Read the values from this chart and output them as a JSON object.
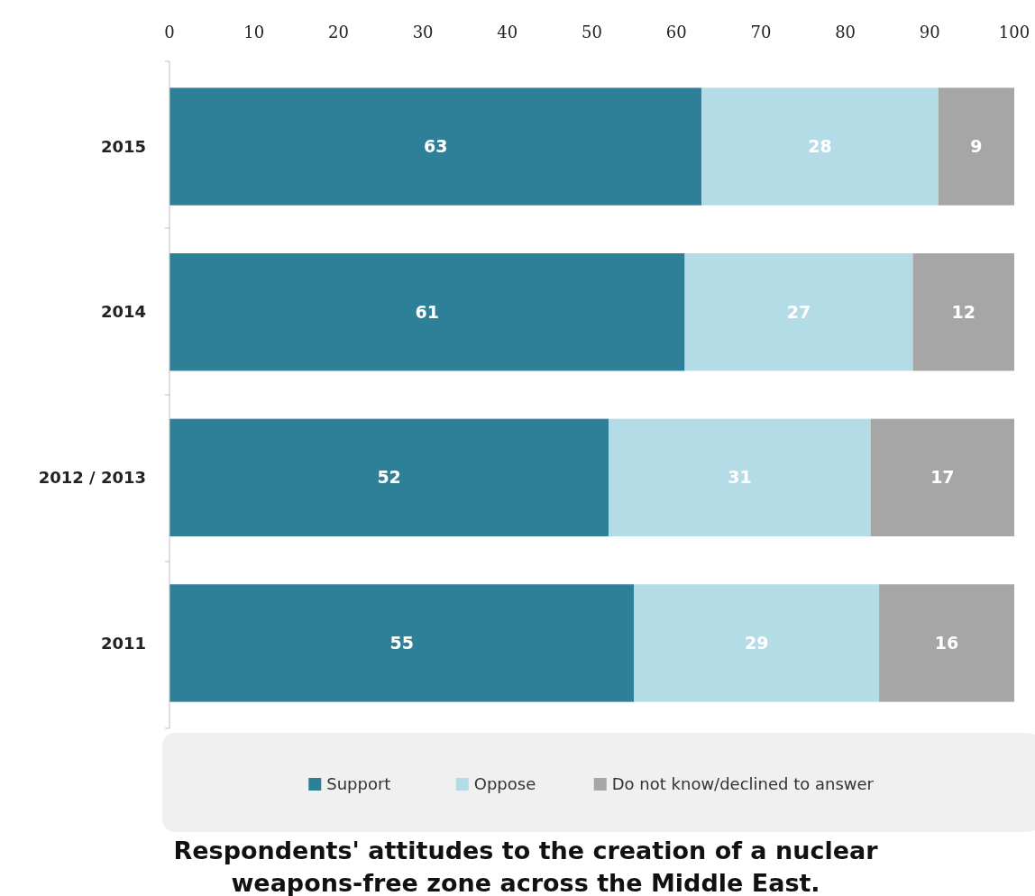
{
  "chart_data": {
    "type": "bar",
    "orientation": "horizontal",
    "stacked": true,
    "title": "Respondents' attitudes to the creation of a nuclear weapons-free zone across the Middle East.",
    "categories": [
      "2015",
      "2014",
      "2012 / 2013",
      "2011"
    ],
    "series": [
      {
        "name": "Support",
        "color": "#2e8099",
        "values": [
          63,
          61,
          52,
          55
        ]
      },
      {
        "name": "Oppose",
        "color": "#b3dce6",
        "values": [
          28,
          27,
          31,
          29
        ]
      },
      {
        "name": "Do not know/declined to answer",
        "color": "#a6a6a6",
        "values": [
          9,
          12,
          17,
          16
        ]
      }
    ],
    "xlim": [
      0,
      100
    ],
    "xticks": [
      0,
      10,
      20,
      30,
      40,
      50,
      60,
      70,
      80,
      90,
      100
    ],
    "data_labels": true,
    "legend": "bottom",
    "grid": false
  }
}
